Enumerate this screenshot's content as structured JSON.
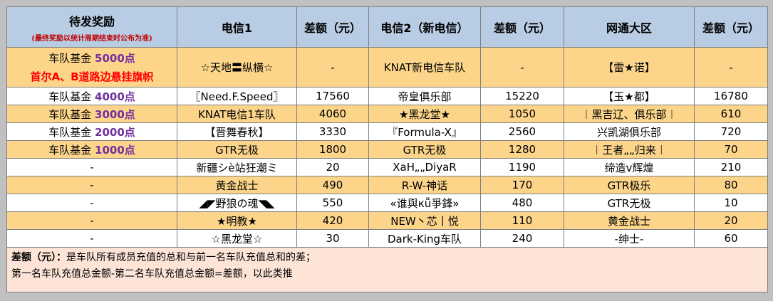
{
  "header": {
    "reward_title": "待发奖励",
    "reward_note": "(最终奖励以统计周期结束时公布为准)",
    "col_dx1": "电信1",
    "col_diff1": "差额（元）",
    "col_dx2": "电信2（新电信）",
    "col_diff2": "差额（元）",
    "col_wt": "网通大区",
    "col_diff3": "差额（元）"
  },
  "rows": [
    {
      "reward_prefix": "车队基金",
      "reward_num": "5000点",
      "banner": "首尔A、B道路边悬挂旗帜",
      "dx1": "☆天地〓纵横☆",
      "d1": "-",
      "dx2": "KNAT新电信车队",
      "d2": "-",
      "wt": "【雷★诺】",
      "d3": "-"
    },
    {
      "reward_prefix": "车队基金",
      "reward_num": "4000点",
      "dx1": "〖Need.F.Speed〗",
      "d1": "17560",
      "dx2": "帝皇俱乐部",
      "d2": "15220",
      "wt": "【玉★都】",
      "d3": "16780"
    },
    {
      "reward_prefix": "车队基金",
      "reward_num": "3000点",
      "dx1": "KNAT电信1车队",
      "d1": "4060",
      "dx2": "★黑龙堂★",
      "d2": "1050",
      "wt": "︱黑吉辽、俱乐部︱",
      "d3": "610"
    },
    {
      "reward_prefix": "车队基金",
      "reward_num": "2000点",
      "dx1": "【晋舞春秋】",
      "d1": "3330",
      "dx2": "『Formula-X』",
      "d2": "2560",
      "wt": "兴凯湖俱乐部",
      "d3": "720"
    },
    {
      "reward_prefix": "车队基金",
      "reward_num": "1000点",
      "dx1": "GTR无极",
      "d1": "1800",
      "dx2": "GTR无极",
      "d2": "1280",
      "wt": "︱王者„„归来︱",
      "d3": "70"
    },
    {
      "reward_prefix": "-",
      "reward_num": "",
      "dx1": "新疆シè站狂潮ミ",
      "d1": "20",
      "dx2": "XaH„„DiyaR",
      "d2": "1190",
      "wt": "缔造v辉煌",
      "d3": "210"
    },
    {
      "reward_prefix": "-",
      "reward_num": "",
      "dx1": "黄金战士",
      "d1": "490",
      "dx2": "R-W-神话",
      "d2": "170",
      "wt": "GTR极乐",
      "d3": "80"
    },
    {
      "reward_prefix": "-",
      "reward_num": "",
      "dx1": "◢◤野狼の魂◥◣",
      "d1": "550",
      "dx2": "«谁與кǚ爭鋒»",
      "d2": "480",
      "wt": "GTR无极",
      "d3": "10"
    },
    {
      "reward_prefix": "-",
      "reward_num": "",
      "dx1": "★明教★",
      "d1": "420",
      "dx2": "NEW丶芯丨悦",
      "d2": "110",
      "wt": "黄金战士",
      "d3": "20"
    },
    {
      "reward_prefix": "-",
      "reward_num": "",
      "dx1": "☆黑龙堂☆",
      "d1": "30",
      "dx2": "Dark-King车队",
      "d2": "240",
      "wt": "-绅士-",
      "d3": "60"
    }
  ],
  "footer": {
    "label": "差额（元）：",
    "line1": "是车队所有成员充值的总和与前一名车队充值总和的差；",
    "line2": "第一名车队充值总金额-第二名车队充值总金额=差额，以此类推"
  },
  "colors": {
    "header_bg": "#b8cce4",
    "row_yellow": "#fcd58a",
    "row_white": "#ffffff",
    "footer_bg": "#fde4d7",
    "accent_purple": "#7030a0",
    "accent_red": "#ff0000"
  }
}
